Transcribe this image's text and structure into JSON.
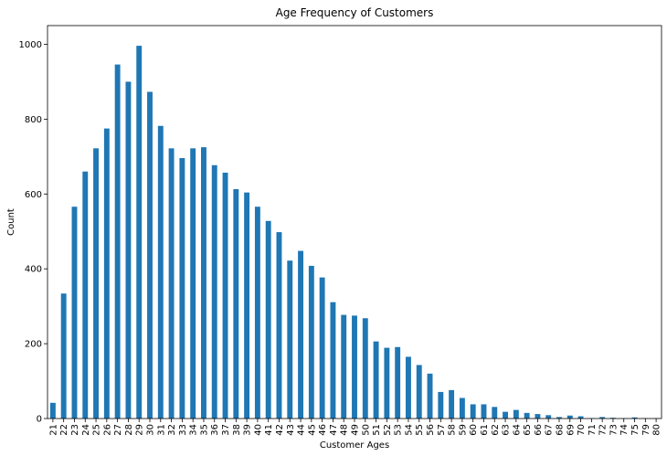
{
  "chart_data": {
    "type": "bar",
    "title": "Age Frequency of Customers",
    "xlabel": "Customer Ages",
    "ylabel": "Count",
    "ylim": [
      0,
      1050
    ],
    "yticks": [
      0,
      200,
      400,
      600,
      800,
      1000
    ],
    "grid": false,
    "bar_color": "#1f77b4",
    "categories": [
      "21",
      "22",
      "23",
      "24",
      "25",
      "26",
      "27",
      "28",
      "29",
      "30",
      "31",
      "32",
      "33",
      "34",
      "35",
      "36",
      "37",
      "38",
      "39",
      "40",
      "41",
      "42",
      "43",
      "44",
      "45",
      "46",
      "47",
      "48",
      "49",
      "50",
      "51",
      "52",
      "53",
      "54",
      "55",
      "56",
      "57",
      "58",
      "59",
      "60",
      "61",
      "62",
      "63",
      "64",
      "65",
      "66",
      "67",
      "68",
      "69",
      "70",
      "71",
      "72",
      "73",
      "74",
      "75",
      "79",
      "80"
    ],
    "values": [
      42,
      334,
      566,
      660,
      722,
      775,
      946,
      900,
      996,
      873,
      782,
      722,
      696,
      722,
      725,
      677,
      657,
      613,
      604,
      566,
      528,
      498,
      422,
      448,
      408,
      377,
      311,
      277,
      275,
      268,
      206,
      189,
      191,
      165,
      143,
      120,
      71,
      76,
      55,
      38,
      38,
      31,
      18,
      23,
      15,
      12,
      9,
      4,
      8,
      6,
      1,
      4,
      2,
      1,
      3,
      1,
      1
    ]
  }
}
